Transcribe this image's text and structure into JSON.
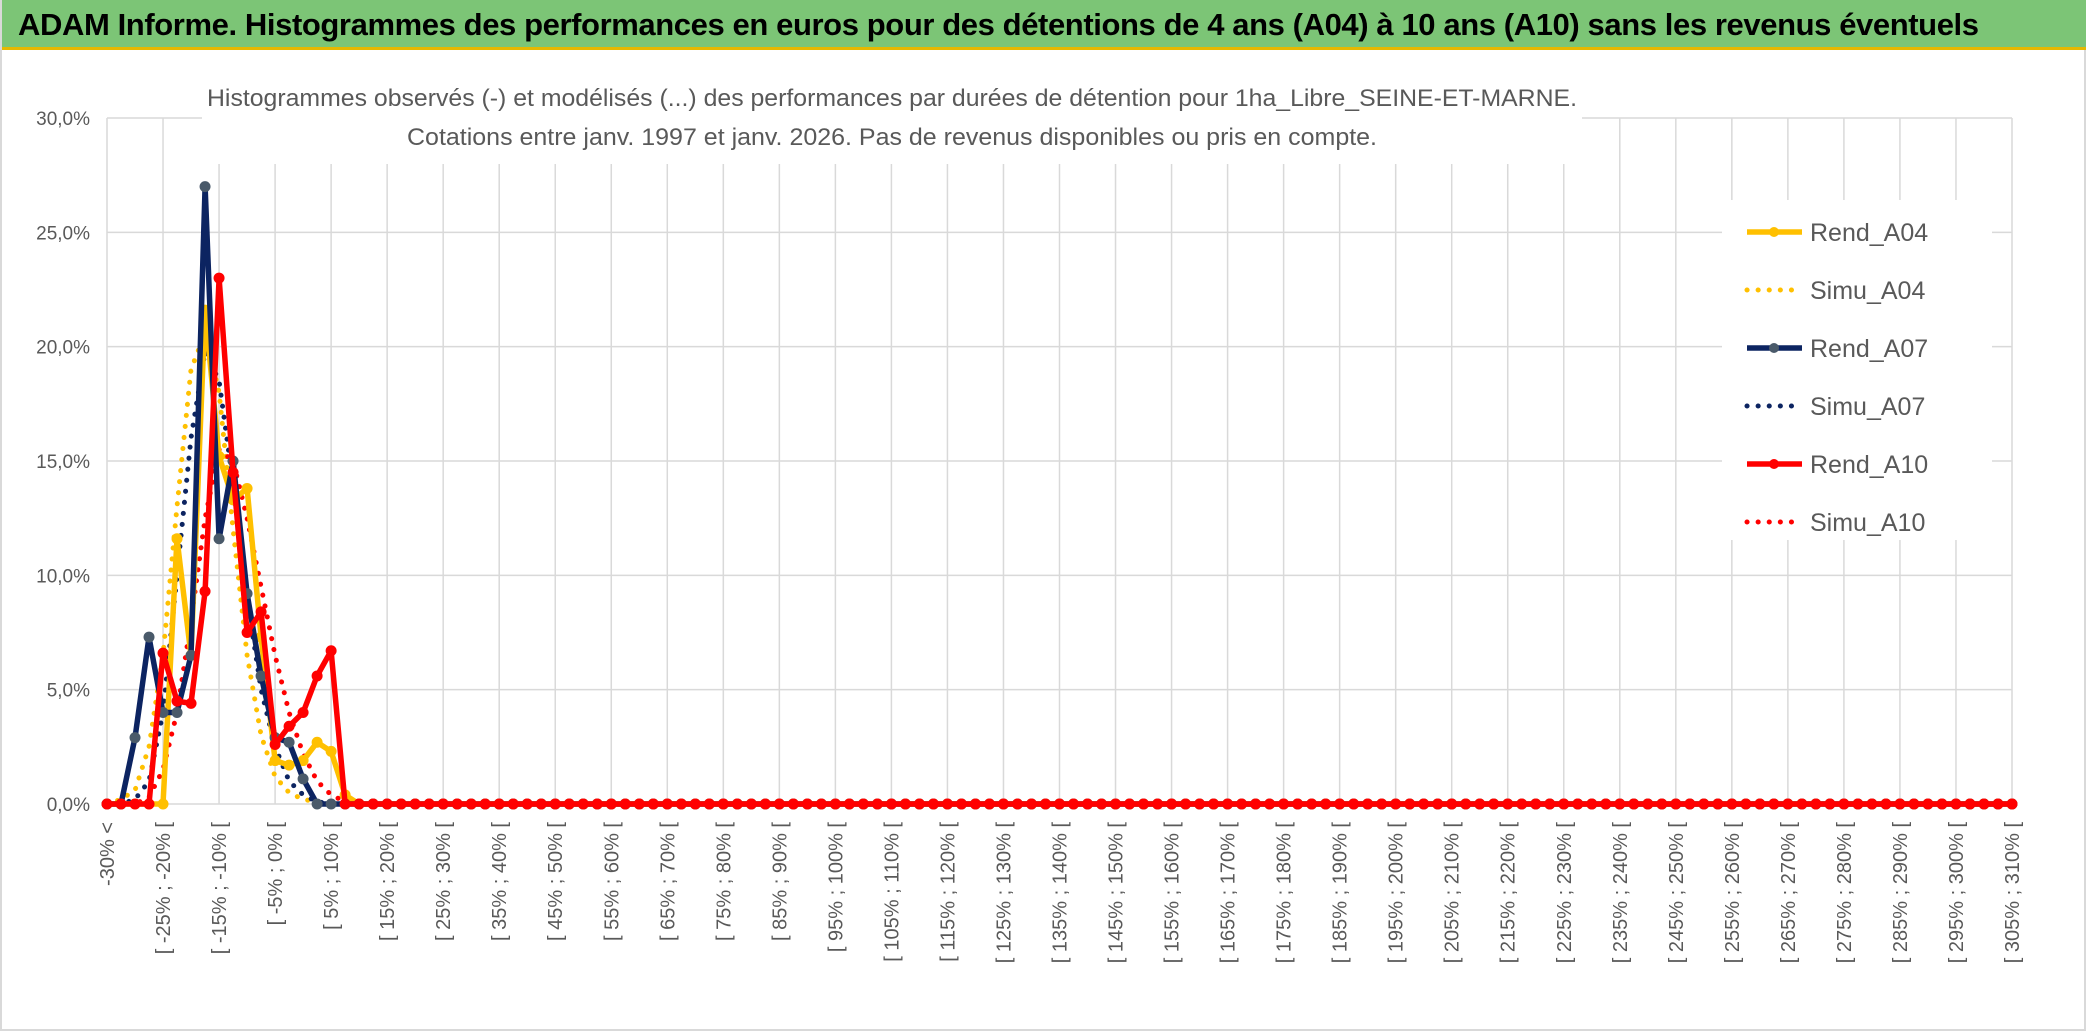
{
  "banner": {
    "title": "ADAM Informe. Histogrammes des performances en euros pour des détentions de 4 ans (A04) à 10 ans (A10) sans les revenus éventuels"
  },
  "colors": {
    "banner_bg": "#7cc576",
    "accent_gold": "#e6b800",
    "A04": "#ffc000",
    "A07": "#0c2461",
    "A10": "#ff0000",
    "marker_A07": "#4a5a6a",
    "grid": "#d9d9d9"
  },
  "chart_data": {
    "type": "line",
    "title_lines": [
      "Histogrammes observés (-) et modélisés (...) des performances par durées de détention pour 1ha_Libre_SEINE-ET-MARNE.",
      "Cotations entre janv. 1997 et janv. 2026. Pas de revenus disponibles ou pris en compte."
    ],
    "ylim": [
      0,
      30
    ],
    "yticks": [
      "0,0%",
      "5,0%",
      "10,0%",
      "15,0%",
      "20,0%",
      "25,0%",
      "30,0%"
    ],
    "grid": true,
    "legend_position": "right",
    "categories": [
      "-30% <",
      "[ -25% ; -20% [",
      "[ -15% ; -10% [",
      "[ -5% ; 0% [",
      "[ 5% ; 10% [",
      "[ 15% ; 20% [",
      "[ 25% ; 30% [",
      "[ 35% ; 40% [",
      "[ 45% ; 50% [",
      "[ 55% ; 60% [",
      "[ 65% ; 70% [",
      "[ 75% ; 80% [",
      "[ 85% ; 90% [",
      "[ 95% ; 100% [",
      "[ 105% ; 110% [",
      "[ 115% ; 120% [",
      "[ 125% ; 130% [",
      "[ 135% ; 140% [",
      "[ 145% ; 150% [",
      "[ 155% ; 160% [",
      "[ 165% ; 170% [",
      "[ 175% ; 180% [",
      "[ 185% ; 190% [",
      "[ 195% ; 200% [",
      "[ 205% ; 210% [",
      "[ 215% ; 220% [",
      "[ 225% ; 230% [",
      "[ 235% ; 240% [",
      "[ 245% ; 250% [",
      "[ 255% ; 260% [",
      "[ 265% ; 270% [",
      "[ 275% ; 280% [",
      "[ 285% ; 290% [",
      "[ 295% ; 300% [",
      "[ 305% ; 310% ["
    ],
    "x_bins": [
      -30,
      -27.5,
      -25,
      -22.5,
      -20,
      -17.5,
      -15,
      -12.5,
      -10,
      -7.5,
      -5,
      -2.5,
      0,
      2.5,
      5,
      7.5,
      10,
      12.5,
      15,
      17.5,
      20,
      22.5,
      25,
      27.5,
      30,
      32.5,
      35,
      37.5,
      40,
      42.5,
      45,
      47.5,
      50,
      52.5,
      55,
      57.5,
      60,
      62.5,
      65,
      67.5,
      70,
      72.5,
      75,
      77.5,
      80,
      82.5,
      85,
      87.5,
      90,
      92.5,
      95,
      97.5,
      100,
      102.5,
      105,
      107.5,
      110,
      112.5,
      115,
      117.5,
      120,
      122.5,
      125,
      127.5,
      130,
      132.5,
      135,
      137.5,
      140,
      142.5,
      145,
      147.5,
      150,
      152.5,
      155,
      157.5,
      160,
      162.5,
      165,
      167.5,
      170,
      172.5,
      175,
      177.5,
      180,
      182.5,
      185,
      187.5,
      190,
      192.5,
      195,
      197.5,
      200,
      202.5,
      205,
      207.5,
      210,
      212.5,
      215,
      217.5,
      220,
      222.5,
      225,
      227.5,
      230,
      232.5,
      235,
      237.5,
      240,
      242.5,
      245,
      247.5,
      250,
      252.5,
      255,
      257.5,
      260,
      262.5,
      265,
      267.5,
      270,
      272.5,
      275,
      277.5,
      280,
      282.5,
      285,
      287.5,
      290,
      292.5,
      295,
      297.5,
      300,
      302.5,
      305,
      307.5,
      310
    ],
    "series": [
      {
        "name": "Rend_A04",
        "style": "solid",
        "color": "#ffc000",
        "marker": "#ffc000",
        "head": [
          0,
          0,
          0,
          0,
          0,
          11.6,
          6.5,
          21.6,
          15.2,
          13.3,
          13.8,
          7.3,
          1.9,
          1.7,
          1.9,
          2.7,
          2.3,
          0.4,
          0
        ]
      },
      {
        "name": "Simu_A04",
        "style": "dotted",
        "color": "#ffc000",
        "head": [
          0,
          0.2,
          0.6,
          2.5,
          6.5,
          13.0,
          19.0,
          20.6,
          18.0,
          12.0,
          6.5,
          3.0,
          1.2,
          0.5,
          0.2,
          0.1,
          0,
          0,
          0
        ]
      },
      {
        "name": "Rend_A07",
        "style": "solid",
        "color": "#0c2461",
        "marker": "#4a5a6a",
        "head": [
          0,
          0,
          2.9,
          7.3,
          4.0,
          4.0,
          6.5,
          27.0,
          11.6,
          15.0,
          9.2,
          5.6,
          2.9,
          2.7,
          1.1,
          0,
          0,
          0,
          0
        ]
      },
      {
        "name": "Simu_A07",
        "style": "dotted",
        "color": "#0c2461",
        "head": [
          0,
          0,
          0.2,
          1.0,
          4.0,
          10.0,
          16.0,
          19.8,
          18.5,
          14.0,
          9.0,
          5.0,
          2.5,
          1.0,
          0.4,
          0.1,
          0,
          0,
          0
        ]
      },
      {
        "name": "Rend_A10",
        "style": "solid",
        "color": "#ff0000",
        "marker": "#ff0000",
        "head": [
          0,
          0,
          0,
          0,
          6.6,
          4.5,
          4.4,
          9.3,
          23.0,
          14.5,
          7.5,
          8.4,
          2.6,
          3.4,
          4.0,
          5.6,
          6.7,
          0,
          0
        ]
      },
      {
        "name": "Simu_A10",
        "style": "dotted",
        "color": "#ff0000",
        "head": [
          0,
          0,
          0,
          0.3,
          1.5,
          4.0,
          8.0,
          12.5,
          15.5,
          15.0,
          12.5,
          9.5,
          6.5,
          4.0,
          2.2,
          1.0,
          0.4,
          0.1,
          0
        ]
      }
    ]
  }
}
